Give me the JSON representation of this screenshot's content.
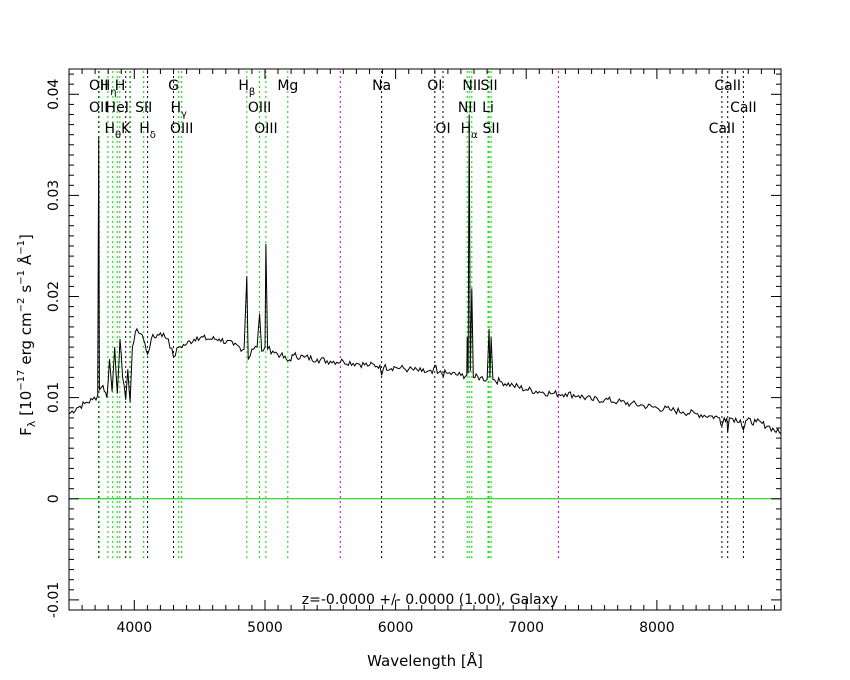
{
  "chart_data": {
    "type": "line",
    "title": "",
    "xlabel": "Wavelength [Å]",
    "ylabel": "F",
    "ylabel_parts": {
      "sym": "F",
      "sub": "λ",
      "open": "[10",
      "exp1": "−17",
      "mid1": "erg cm",
      "exp2": "−2",
      "mid2": "s",
      "exp3": "−1",
      "unit": "Å",
      "exp4": "−1",
      "close": "]"
    },
    "annotation": "z=-0.0000 +/- 0.0000 (1.00), Galaxy",
    "xlim": [
      3500,
      8950
    ],
    "ylim": [
      -0.011,
      0.0425
    ],
    "x_ticks": [
      4000,
      5000,
      6000,
      7000,
      8000
    ],
    "x_tick_labels": [
      "4000",
      "5000",
      "6000",
      "7000",
      "8000"
    ],
    "y_ticks": [
      -0.01,
      0,
      0.01,
      0.02,
      0.03,
      0.04
    ],
    "y_tick_labels": [
      "-0.01",
      "0",
      "0.01",
      "0.02",
      "0.03",
      "0.04"
    ],
    "zero_line": 0,
    "line_markers": [
      {
        "x": 3727,
        "color": "#000000"
      },
      {
        "x": 3732,
        "color": "#00d800"
      },
      {
        "x": 3798,
        "color": "#00d800"
      },
      {
        "x": 3835,
        "color": "#00d800"
      },
      {
        "x": 3869,
        "color": "#00d800"
      },
      {
        "x": 3889,
        "color": "#00d800"
      },
      {
        "x": 3934,
        "color": "#000000"
      },
      {
        "x": 3968,
        "color": "#000000"
      },
      {
        "x": 3970,
        "color": "#00d800"
      },
      {
        "x": 4072,
        "color": "#00d800"
      },
      {
        "x": 4102,
        "color": "#000000"
      },
      {
        "x": 4300,
        "color": "#000000"
      },
      {
        "x": 4340,
        "color": "#00d800"
      },
      {
        "x": 4363,
        "color": "#00d800"
      },
      {
        "x": 4861,
        "color": "#00d800"
      },
      {
        "x": 4959,
        "color": "#00d800"
      },
      {
        "x": 5007,
        "color": "#00d800"
      },
      {
        "x": 5175,
        "color": "#00d800"
      },
      {
        "x": 5577,
        "color": "#cc00cc"
      },
      {
        "x": 5893,
        "color": "#000000"
      },
      {
        "x": 6300,
        "color": "#000000"
      },
      {
        "x": 6363,
        "color": "#000000"
      },
      {
        "x": 6548,
        "color": "#00d800"
      },
      {
        "x": 6563,
        "color": "#00d800"
      },
      {
        "x": 6583,
        "color": "#00d800"
      },
      {
        "x": 6707,
        "color": "#00d800"
      },
      {
        "x": 6716,
        "color": "#00d800"
      },
      {
        "x": 6731,
        "color": "#00d800"
      },
      {
        "x": 7246,
        "color": "#cc00cc"
      },
      {
        "x": 8498,
        "color": "#000000"
      },
      {
        "x": 8542,
        "color": "#000000"
      },
      {
        "x": 8662,
        "color": "#000000"
      }
    ],
    "line_labels": [
      {
        "x": 3727,
        "row": 1,
        "text": "OII"
      },
      {
        "x": 3800,
        "row": 1,
        "text": "H",
        "sub": "η"
      },
      {
        "x": 3890,
        "row": 1,
        "text": "H"
      },
      {
        "x": 4300,
        "row": 1,
        "text": "G"
      },
      {
        "x": 4861,
        "row": 1,
        "text": "H",
        "sub": "β"
      },
      {
        "x": 5175,
        "row": 1,
        "text": "Mg"
      },
      {
        "x": 5893,
        "row": 1,
        "text": "Na"
      },
      {
        "x": 6300,
        "row": 1,
        "text": "OI"
      },
      {
        "x": 6583,
        "row": 1,
        "text": "NII"
      },
      {
        "x": 6716,
        "row": 1,
        "text": "SII"
      },
      {
        "x": 8542,
        "row": 1,
        "text": "CaII"
      },
      {
        "x": 3727,
        "row": 2,
        "text": "OII"
      },
      {
        "x": 3869,
        "row": 2,
        "text": "HeI"
      },
      {
        "x": 4072,
        "row": 2,
        "text": "SII"
      },
      {
        "x": 4340,
        "row": 2,
        "text": "H",
        "sub": "γ"
      },
      {
        "x": 4959,
        "row": 2,
        "text": "OIII"
      },
      {
        "x": 6548,
        "row": 2,
        "text": "NII"
      },
      {
        "x": 6707,
        "row": 2,
        "text": "Li"
      },
      {
        "x": 8662,
        "row": 2,
        "text": "CaII"
      },
      {
        "x": 3835,
        "row": 3,
        "text": "H",
        "sub": "θ"
      },
      {
        "x": 3934,
        "row": 3,
        "text": "K"
      },
      {
        "x": 4102,
        "row": 3,
        "text": "H",
        "sub": "δ"
      },
      {
        "x": 4363,
        "row": 3,
        "text": "OIII"
      },
      {
        "x": 5007,
        "row": 3,
        "text": "OIII"
      },
      {
        "x": 6363,
        "row": 3,
        "text": "OI"
      },
      {
        "x": 6563,
        "row": 3,
        "text": "H",
        "sub": "α"
      },
      {
        "x": 6731,
        "row": 3,
        "text": "SII"
      },
      {
        "x": 8498,
        "row": 3,
        "text": "CaII"
      }
    ],
    "series": [
      {
        "name": "spectrum",
        "color": "#000000",
        "points": [
          [
            3500,
            0.0084
          ],
          [
            3560,
            0.009
          ],
          [
            3620,
            0.0094
          ],
          [
            3680,
            0.0098
          ],
          [
            3720,
            0.0102
          ],
          [
            3727,
            0.0357
          ],
          [
            3733,
            0.0108
          ],
          [
            3760,
            0.0112
          ],
          [
            3790,
            0.01
          ],
          [
            3810,
            0.0138
          ],
          [
            3830,
            0.0106
          ],
          [
            3850,
            0.015
          ],
          [
            3870,
            0.0104
          ],
          [
            3890,
            0.0158
          ],
          [
            3910,
            0.012
          ],
          [
            3934,
            0.0098
          ],
          [
            3950,
            0.0128
          ],
          [
            3968,
            0.0096
          ],
          [
            3985,
            0.015
          ],
          [
            4020,
            0.0168
          ],
          [
            4060,
            0.0162
          ],
          [
            4102,
            0.0143
          ],
          [
            4130,
            0.0158
          ],
          [
            4200,
            0.0164
          ],
          [
            4260,
            0.0158
          ],
          [
            4300,
            0.014
          ],
          [
            4340,
            0.015
          ],
          [
            4400,
            0.0153
          ],
          [
            4480,
            0.016
          ],
          [
            4560,
            0.0158
          ],
          [
            4650,
            0.0158
          ],
          [
            4760,
            0.0152
          ],
          [
            4840,
            0.0148
          ],
          [
            4861,
            0.022
          ],
          [
            4872,
            0.0138
          ],
          [
            4900,
            0.0148
          ],
          [
            4940,
            0.015
          ],
          [
            4959,
            0.0183
          ],
          [
            4975,
            0.0146
          ],
          [
            5000,
            0.015
          ],
          [
            5007,
            0.0252
          ],
          [
            5020,
            0.0148
          ],
          [
            5060,
            0.0146
          ],
          [
            5120,
            0.0142
          ],
          [
            5175,
            0.0136
          ],
          [
            5220,
            0.0142
          ],
          [
            5300,
            0.014
          ],
          [
            5400,
            0.0138
          ],
          [
            5500,
            0.0136
          ],
          [
            5600,
            0.0136
          ],
          [
            5700,
            0.0134
          ],
          [
            5800,
            0.0132
          ],
          [
            5880,
            0.0132
          ],
          [
            5893,
            0.0122
          ],
          [
            5910,
            0.013
          ],
          [
            6000,
            0.013
          ],
          [
            6100,
            0.0128
          ],
          [
            6200,
            0.0126
          ],
          [
            6280,
            0.0124
          ],
          [
            6300,
            0.0132
          ],
          [
            6320,
            0.0124
          ],
          [
            6400,
            0.0124
          ],
          [
            6500,
            0.0122
          ],
          [
            6545,
            0.0122
          ],
          [
            6548,
            0.016
          ],
          [
            6555,
            0.0124
          ],
          [
            6563,
            0.038
          ],
          [
            6572,
            0.0126
          ],
          [
            6583,
            0.0208
          ],
          [
            6595,
            0.012
          ],
          [
            6650,
            0.012
          ],
          [
            6700,
            0.0118
          ],
          [
            6716,
            0.0168
          ],
          [
            6722,
            0.012
          ],
          [
            6731,
            0.016
          ],
          [
            6745,
            0.0118
          ],
          [
            6800,
            0.0116
          ],
          [
            6900,
            0.0112
          ],
          [
            7000,
            0.0108
          ],
          [
            7100,
            0.0106
          ],
          [
            7200,
            0.0104
          ],
          [
            7300,
            0.0104
          ],
          [
            7400,
            0.0102
          ],
          [
            7500,
            0.0098
          ],
          [
            7600,
            0.0098
          ],
          [
            7700,
            0.0096
          ],
          [
            7800,
            0.0094
          ],
          [
            7900,
            0.0092
          ],
          [
            8000,
            0.009
          ],
          [
            8100,
            0.0088
          ],
          [
            8200,
            0.0086
          ],
          [
            8300,
            0.0084
          ],
          [
            8400,
            0.0082
          ],
          [
            8480,
            0.008
          ],
          [
            8498,
            0.0072
          ],
          [
            8515,
            0.008
          ],
          [
            8535,
            0.008
          ],
          [
            8542,
            0.0066
          ],
          [
            8555,
            0.008
          ],
          [
            8640,
            0.0078
          ],
          [
            8662,
            0.0068
          ],
          [
            8680,
            0.0077
          ],
          [
            8760,
            0.0076
          ],
          [
            8850,
            0.0072
          ],
          [
            8950,
            0.0064
          ]
        ]
      }
    ]
  }
}
